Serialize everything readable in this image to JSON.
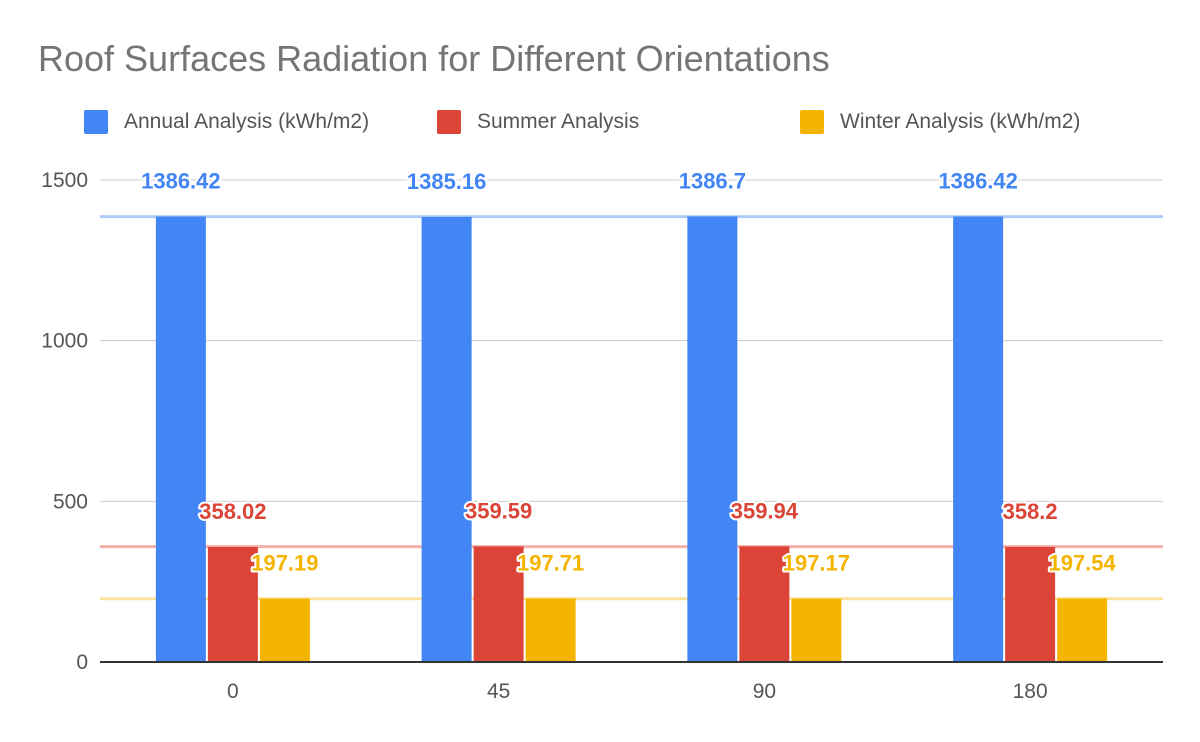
{
  "chart_data": {
    "type": "bar",
    "title": "Roof Surfaces Radiation for Different Orientations",
    "categories": [
      "0",
      "45",
      "90",
      "180"
    ],
    "series": [
      {
        "name": "Annual Analysis (kWh/m2)",
        "color": "#4285f4",
        "values": [
          1386.42,
          1385.16,
          1386.7,
          1386.42
        ]
      },
      {
        "name": "Summer Analysis",
        "color": "#db4437",
        "values": [
          358.02,
          359.59,
          359.94,
          358.2
        ]
      },
      {
        "name": "Winter Analysis (kWh/m2)",
        "color": "#f4b400",
        "values": [
          197.19,
          197.71,
          197.17,
          197.54
        ]
      }
    ],
    "data_labels": [
      [
        "1386.42",
        "1385.16",
        "1386.7",
        "1386.42"
      ],
      [
        "358.02",
        "359.59",
        "359.94",
        "358.2"
      ],
      [
        "197.19",
        "197.71",
        "197.17",
        "197.54"
      ]
    ],
    "reference_lines": [
      {
        "series": "Annual Analysis (kWh/m2)",
        "value": 1386,
        "color": "#aecbfa"
      },
      {
        "series": "Summer Analysis",
        "value": 359,
        "color": "#f4b0aa"
      },
      {
        "series": "Winter Analysis (kWh/m2)",
        "value": 197,
        "color": "#fce29a"
      }
    ],
    "y_ticks": [
      0,
      500,
      1000,
      1500
    ],
    "ylim": [
      0,
      1500
    ],
    "xlabel": "",
    "ylabel": "",
    "grid": true,
    "legend_position": "top"
  }
}
